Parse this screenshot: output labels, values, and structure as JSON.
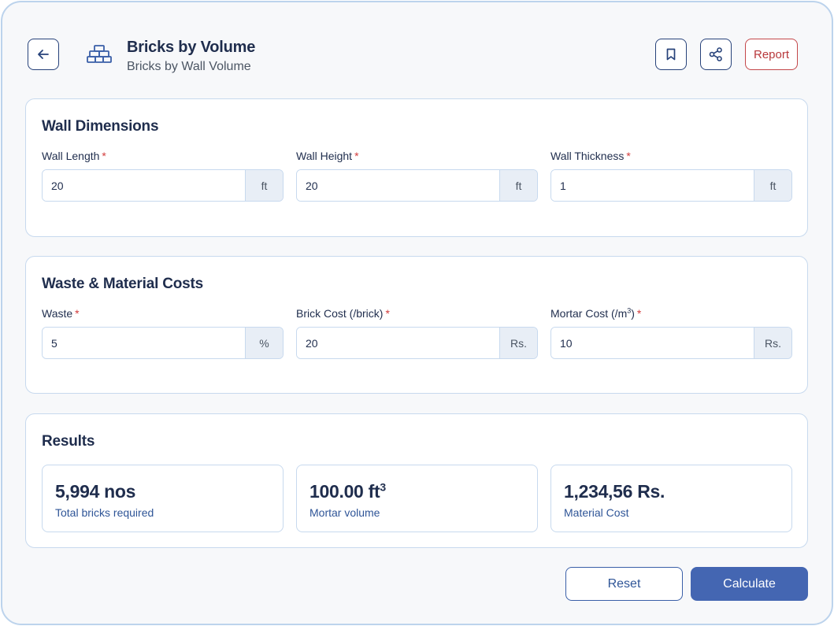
{
  "header": {
    "title": "Bricks by Volume",
    "subtitle": "Bricks by Wall Volume",
    "report_label": "Report",
    "icons": {
      "back": "arrow-left-icon",
      "app": "bricks-icon",
      "bookmark": "bookmark-icon",
      "share": "share-icon"
    }
  },
  "wall_dimensions": {
    "title": "Wall Dimensions",
    "fields": [
      {
        "label": "Wall Length",
        "required": "*",
        "value": "20",
        "unit": "ft"
      },
      {
        "label": "Wall Height",
        "required": "*",
        "value": "20",
        "unit": "ft"
      },
      {
        "label": "Wall Thickness",
        "required": "*",
        "value": "1",
        "unit": "ft"
      }
    ]
  },
  "costs": {
    "title": "Waste & Material Costs",
    "fields": [
      {
        "label": "Waste",
        "required": "*",
        "value": "5",
        "unit": "%"
      },
      {
        "label": "Brick Cost (/brick)",
        "required": "*",
        "value": "20",
        "unit": "Rs."
      },
      {
        "label_prefix": "Mortar Cost (/m",
        "label_sup": "3",
        "label_suffix": ")",
        "required": "*",
        "value": "10",
        "unit": "Rs."
      }
    ]
  },
  "results": {
    "title": "Results",
    "items": [
      {
        "value": "5,994 nos",
        "label": "Total bricks required"
      },
      {
        "value": "100.00 ft",
        "value_sup": "3",
        "label": "Mortar volume"
      },
      {
        "value": "1,234,56 Rs.",
        "label": "Material Cost"
      }
    ]
  },
  "actions": {
    "reset_label": "Reset",
    "calculate_label": "Calculate"
  },
  "colors": {
    "primary": "#4466b2",
    "danger": "#c4474a",
    "border": "#c7d9ee"
  }
}
